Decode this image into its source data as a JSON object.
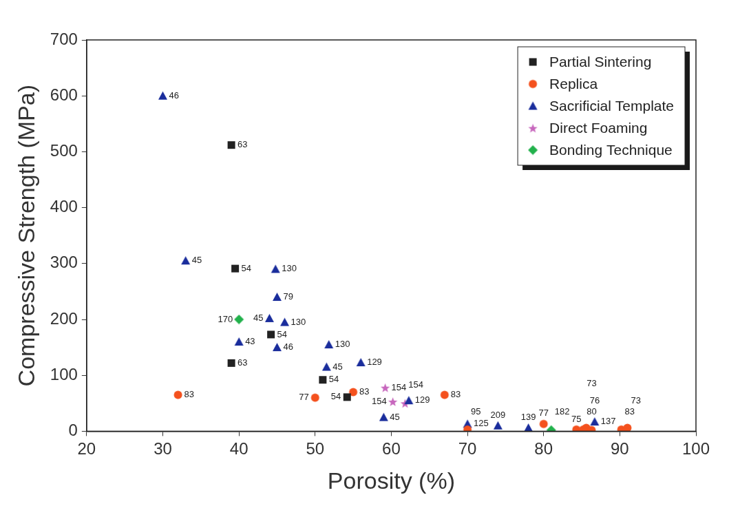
{
  "chart_data": {
    "type": "scatter",
    "x_label": "Porosity (%)",
    "y_label": "Compressive Strength (MPa)",
    "xlim": [
      20,
      100
    ],
    "xticks": [
      20,
      30,
      40,
      50,
      60,
      70,
      80,
      90,
      100
    ],
    "ylim": [
      0,
      700
    ],
    "yticks": [
      0,
      100,
      200,
      300,
      400,
      500,
      600,
      700
    ],
    "grid": false,
    "legend": "upper right",
    "series": [
      {
        "name": "Partial Sintering",
        "color": "#222222",
        "marker": "square",
        "x": [
          39,
          39.5,
          44.2,
          39,
          51,
          54.2
        ],
        "values": [
          512,
          291,
          173,
          122,
          92,
          61
        ],
        "point_labels": [
          "63",
          "54",
          "54",
          "63",
          "54",
          "54"
        ]
      },
      {
        "name": "Replica",
        "color": "#f4511e",
        "marker": "circle",
        "x": [
          32,
          50,
          55,
          67,
          70,
          80,
          84.3,
          85.2,
          85.6,
          86.3,
          90.2,
          91
        ],
        "values": [
          65,
          60,
          70,
          65,
          3,
          13,
          3,
          3,
          6,
          2,
          3,
          6
        ],
        "point_labels": [
          "83",
          "77",
          "83",
          "83",
          "95",
          "77",
          "75",
          "80",
          "76",
          "73",
          "83",
          "73"
        ]
      },
      {
        "name": "Sacrificial Template",
        "color": "#1a2d9c",
        "marker": "triangle",
        "x": [
          30,
          33,
          44.8,
          45,
          44,
          46,
          40,
          45,
          51.8,
          51.5,
          56,
          59,
          62.3,
          70,
          74,
          78,
          86.7
        ],
        "values": [
          600,
          305,
          290,
          240,
          202,
          195,
          160,
          150,
          155,
          115,
          123,
          25,
          55,
          13,
          10,
          6,
          17
        ],
        "point_labels": [
          "46",
          "45",
          "130",
          "79",
          "45",
          "130",
          "43",
          "46",
          "130",
          "45",
          "129",
          "45",
          "129",
          "125",
          "209",
          "139",
          "137"
        ]
      },
      {
        "name": "Direct Foaming",
        "color": "#c767bd",
        "marker": "star",
        "x": [
          59.2,
          60.2,
          61.8
        ],
        "values": [
          78,
          53,
          50
        ],
        "point_labels": [
          "154",
          "154",
          "154"
        ]
      },
      {
        "name": "Bonding Technique",
        "color": "#22b14c",
        "marker": "diamond",
        "x": [
          40,
          81
        ],
        "values": [
          200,
          2
        ],
        "point_labels": [
          "170",
          "182"
        ]
      }
    ]
  }
}
